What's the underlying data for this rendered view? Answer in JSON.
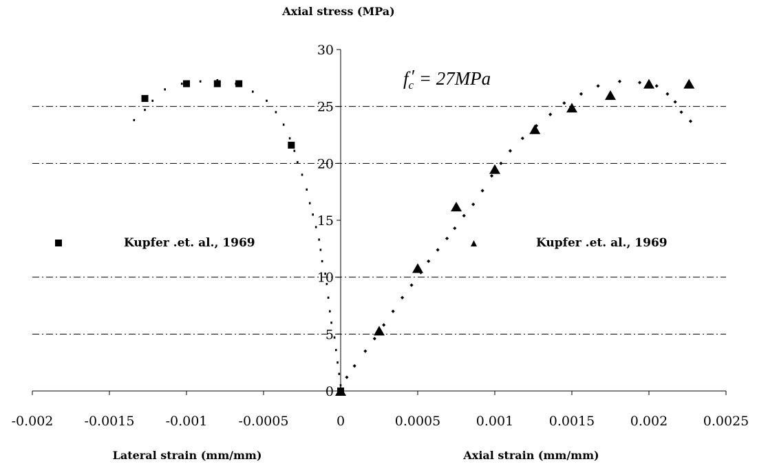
{
  "chart_data": {
    "type": "scatter",
    "y_axis_title": "Axial stress (MPa)",
    "x_axis_title_left": "Lateral strain (mm/mm)",
    "x_axis_title_right": "Axial strain (mm/mm)",
    "annotation": {
      "main": "f",
      "sub": "c",
      "prime": "′",
      "rest": " = 27MPa"
    },
    "xlim": [
      -0.002,
      0.0025
    ],
    "ylim": [
      0,
      30
    ],
    "x_ticks": [
      {
        "value": -0.002,
        "label": "-0.002"
      },
      {
        "value": -0.0015,
        "label": "-0.0015"
      },
      {
        "value": -0.001,
        "label": "-0.001"
      },
      {
        "value": -0.0005,
        "label": "-0.0005"
      },
      {
        "value": 0,
        "label": "0"
      },
      {
        "value": 0.0005,
        "label": "0.0005"
      },
      {
        "value": 0.001,
        "label": "0.001"
      },
      {
        "value": 0.0015,
        "label": "0.0015"
      },
      {
        "value": 0.002,
        "label": "0.002"
      },
      {
        "value": 0.0025,
        "label": "0.0025"
      }
    ],
    "y_ticks": [
      {
        "value": 0,
        "label": "0"
      },
      {
        "value": 5,
        "label": "5"
      },
      {
        "value": 10,
        "label": "10"
      },
      {
        "value": 15,
        "label": "15"
      },
      {
        "value": 20,
        "label": "20"
      },
      {
        "value": 25,
        "label": "25"
      },
      {
        "value": 30,
        "label": "30"
      }
    ],
    "gridlines_y": [
      5,
      10,
      20,
      25
    ],
    "series": [
      {
        "name": "Kupfer .et. al., 1969",
        "marker": "square",
        "color": "#000000",
        "points": [
          [
            0,
            0
          ],
          [
            -0.00032,
            21.6
          ],
          [
            -0.00066,
            27.0
          ],
          [
            -0.0008,
            27.0
          ],
          [
            -0.001,
            27.0
          ],
          [
            -0.00127,
            25.7
          ]
        ]
      },
      {
        "name": "Kupfer .et. al., 1969",
        "marker": "triangle",
        "color": "#000000",
        "points": [
          [
            0,
            0
          ],
          [
            0.00025,
            5.3
          ],
          [
            0.0005,
            10.8
          ],
          [
            0.00075,
            16.2
          ],
          [
            0.001,
            19.5
          ],
          [
            0.00126,
            23.0
          ],
          [
            0.0015,
            24.9
          ],
          [
            0.00175,
            26.0
          ],
          [
            0.002,
            27.0
          ],
          [
            0.00226,
            27.0
          ]
        ]
      },
      {
        "marker": "dot",
        "color": "#000000",
        "points": [
          [
            0,
            0.5
          ],
          [
            -1e-05,
            1.5
          ],
          [
            -2e-05,
            2.5
          ],
          [
            -3e-05,
            3.6
          ],
          [
            -4e-05,
            4.7
          ],
          [
            -6e-05,
            6.0
          ],
          [
            -7e-05,
            7.0
          ],
          [
            -8e-05,
            8.2
          ],
          [
            -9e-05,
            9.4
          ],
          [
            -0.0001,
            10.3
          ],
          [
            -0.00012,
            11.4
          ],
          [
            -0.00013,
            12.4
          ],
          [
            -0.00014,
            13.3
          ],
          [
            -0.00016,
            14.4
          ],
          [
            -0.00018,
            15.5
          ],
          [
            -0.0002,
            16.5
          ],
          [
            -0.00022,
            17.7
          ],
          [
            -0.00025,
            19.0
          ],
          [
            -0.00028,
            20.1
          ],
          [
            -0.0003,
            21.1
          ],
          [
            -0.00033,
            22.2
          ],
          [
            -0.00037,
            23.4
          ],
          [
            -0.00042,
            24.5
          ],
          [
            -0.00048,
            25.5
          ],
          [
            -0.00057,
            26.3
          ],
          [
            -0.00068,
            27.0
          ],
          [
            -0.0008,
            27.3
          ],
          [
            -0.00091,
            27.2
          ],
          [
            -0.00103,
            27.0
          ],
          [
            -0.00114,
            26.5
          ],
          [
            -0.00122,
            25.5
          ],
          [
            -0.00127,
            24.7
          ],
          [
            -0.00134,
            23.8
          ]
        ]
      },
      {
        "marker": "diamond",
        "color": "#000000",
        "points": [
          [
            0,
            0.2
          ],
          [
            4e-05,
            1.2
          ],
          [
            9e-05,
            2.2
          ],
          [
            0.00016,
            3.5
          ],
          [
            0.00022,
            4.6
          ],
          [
            0.00028,
            5.8
          ],
          [
            0.00034,
            7.0
          ],
          [
            0.0004,
            8.2
          ],
          [
            0.00046,
            9.3
          ],
          [
            0.00052,
            10.4
          ],
          [
            0.00057,
            11.4
          ],
          [
            0.00063,
            12.4
          ],
          [
            0.00069,
            13.4
          ],
          [
            0.00074,
            14.3
          ],
          [
            0.0008,
            15.4
          ],
          [
            0.00086,
            16.4
          ],
          [
            0.00092,
            17.6
          ],
          [
            0.00098,
            18.9
          ],
          [
            0.00104,
            20.0
          ],
          [
            0.0011,
            21.1
          ],
          [
            0.00118,
            22.2
          ],
          [
            0.00127,
            23.3
          ],
          [
            0.00136,
            24.3
          ],
          [
            0.00145,
            25.3
          ],
          [
            0.00156,
            26.1
          ],
          [
            0.00167,
            26.8
          ],
          [
            0.00181,
            27.2
          ],
          [
            0.00194,
            27.1
          ],
          [
            0.00205,
            26.8
          ],
          [
            0.00212,
            26.1
          ],
          [
            0.00217,
            25.4
          ],
          [
            0.00221,
            24.5
          ],
          [
            0.00227,
            23.7
          ]
        ]
      }
    ],
    "legend": [
      {
        "marker": "square",
        "label": "Kupfer .et. al., 1969",
        "position": "left-middle"
      },
      {
        "marker": "triangle",
        "label": "Kupfer .et. al., 1969",
        "position": "right-middle"
      }
    ]
  }
}
